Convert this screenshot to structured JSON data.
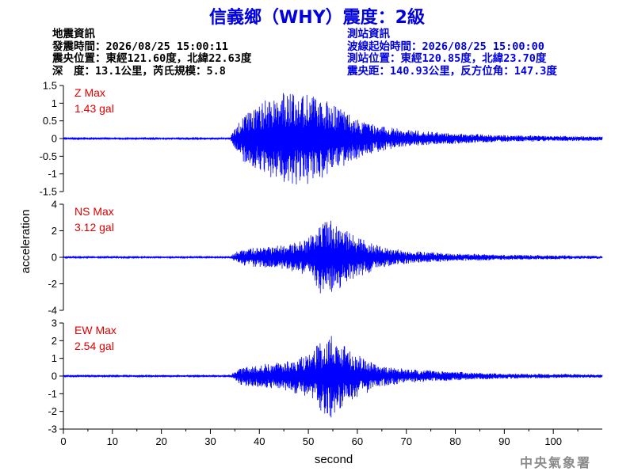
{
  "title": "信義鄉（WHY）震度：2級",
  "earthquake_info": {
    "heading": "地震資訊",
    "origin_time": "發震時間：2026/08/25 15:00:11",
    "epicenter": "震央位置：東經121.60度，北緯22.63度",
    "depth_magnitude": "深　度：13.1公里，芮氏規模：5.8"
  },
  "station_info": {
    "heading": "測站資訊",
    "waveform_start": "波線起始時間：2026/08/25 15:00:00",
    "station_location": "測站位置：東經120.85度，北緯23.70度",
    "distance_azimuth": "震央距：140.93公里，反方位角：147.3度"
  },
  "watermark": "中央氣象署",
  "colors": {
    "title": "#0000e0",
    "trace": "#0000ff",
    "max_label": "#e00000",
    "axis": "#000000",
    "watermark": "#8a8a8a"
  },
  "chart_data": {
    "type": "line",
    "xlabel": "second",
    "ylabel": "acceleration",
    "xlim": [
      0,
      110
    ],
    "xticks": [
      0,
      10,
      20,
      30,
      40,
      50,
      60,
      70,
      80,
      90,
      100
    ],
    "grid": false,
    "trace_note": "synthetic envelope approximation of seismogram",
    "arrival_s": 35,
    "panels": [
      {
        "component": "Z",
        "max_label": "Z Max",
        "max_value": "1.43 gal",
        "ylim": [
          -1.5,
          1.5
        ],
        "yticks": [
          -1.5,
          -1,
          -0.5,
          0,
          0.5,
          1,
          1.5
        ],
        "envelope": [
          [
            0,
            0.02
          ],
          [
            34,
            0.02
          ],
          [
            36,
            0.6
          ],
          [
            38,
            0.9
          ],
          [
            41,
            1.1
          ],
          [
            45,
            1.3
          ],
          [
            50,
            1.4
          ],
          [
            55,
            1.0
          ],
          [
            60,
            0.6
          ],
          [
            65,
            0.35
          ],
          [
            70,
            0.25
          ],
          [
            80,
            0.15
          ],
          [
            90,
            0.1
          ],
          [
            110,
            0.06
          ]
        ]
      },
      {
        "component": "NS",
        "max_label": "NS Max",
        "max_value": "3.12 gal",
        "ylim": [
          -4,
          4
        ],
        "yticks": [
          -4,
          -2,
          0,
          2,
          4
        ],
        "envelope": [
          [
            0,
            0.05
          ],
          [
            34,
            0.05
          ],
          [
            36,
            0.6
          ],
          [
            40,
            0.8
          ],
          [
            45,
            0.9
          ],
          [
            50,
            1.5
          ],
          [
            53,
            3.0
          ],
          [
            56,
            2.6
          ],
          [
            60,
            1.5
          ],
          [
            65,
            0.8
          ],
          [
            70,
            0.5
          ],
          [
            80,
            0.3
          ],
          [
            90,
            0.2
          ],
          [
            110,
            0.12
          ]
        ]
      },
      {
        "component": "EW",
        "max_label": "EW Max",
        "max_value": "2.54 gal",
        "ylim": [
          -3,
          3
        ],
        "yticks": [
          -3,
          -2,
          -1,
          0,
          1,
          2,
          3
        ],
        "envelope": [
          [
            0,
            0.04
          ],
          [
            34,
            0.04
          ],
          [
            36,
            0.5
          ],
          [
            40,
            0.7
          ],
          [
            45,
            0.8
          ],
          [
            50,
            1.2
          ],
          [
            54,
            2.5
          ],
          [
            57,
            1.8
          ],
          [
            60,
            1.2
          ],
          [
            65,
            0.6
          ],
          [
            70,
            0.4
          ],
          [
            80,
            0.25
          ],
          [
            90,
            0.15
          ],
          [
            110,
            0.1
          ]
        ]
      }
    ]
  }
}
